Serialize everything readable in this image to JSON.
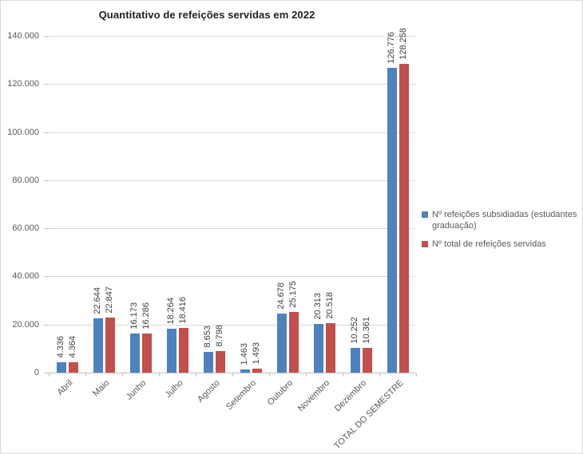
{
  "chart_data": {
    "type": "bar",
    "title": "Quantitativo de refeições servidas em 2022",
    "categories": [
      "Abril",
      "Maio",
      "Junho",
      "Julho",
      "Agosto",
      "Setembro",
      "Outubro",
      "Novembro",
      "Dezembro",
      "TOTAL DO SEMESTRE"
    ],
    "series": [
      {
        "name": "Nº refeições subsidiadas (estudantes graduação)",
        "color": "#4F81BD",
        "values": [
          4336,
          22644,
          16173,
          18264,
          8653,
          1463,
          24678,
          20313,
          10252,
          126776
        ]
      },
      {
        "name": "Nº total de refeições servidas",
        "color": "#C0504D",
        "values": [
          4364,
          22847,
          16286,
          18416,
          8798,
          1493,
          25175,
          20518,
          10361,
          128258
        ]
      }
    ],
    "ylim": [
      0,
      140000
    ],
    "ytick_step": 20000,
    "ytick_labels": [
      "0",
      "20.000",
      "40.000",
      "60.000",
      "80.000",
      "100.000",
      "120.000",
      "140.000"
    ],
    "xlabel": "",
    "ylabel": "",
    "grid": true,
    "data_labels": true,
    "data_label_rotation": "vertical",
    "category_label_rotation": -45,
    "legend_position": "right",
    "number_format": "thousands-dot"
  },
  "colors": {
    "background": "#FFFFFF",
    "border": "#D9D9D9",
    "gridline": "#D9D9D9",
    "axis": "#BFBFBF",
    "axis_text": "#595959",
    "data_label_text": "#404040",
    "title_text": "#1F1F1F"
  }
}
